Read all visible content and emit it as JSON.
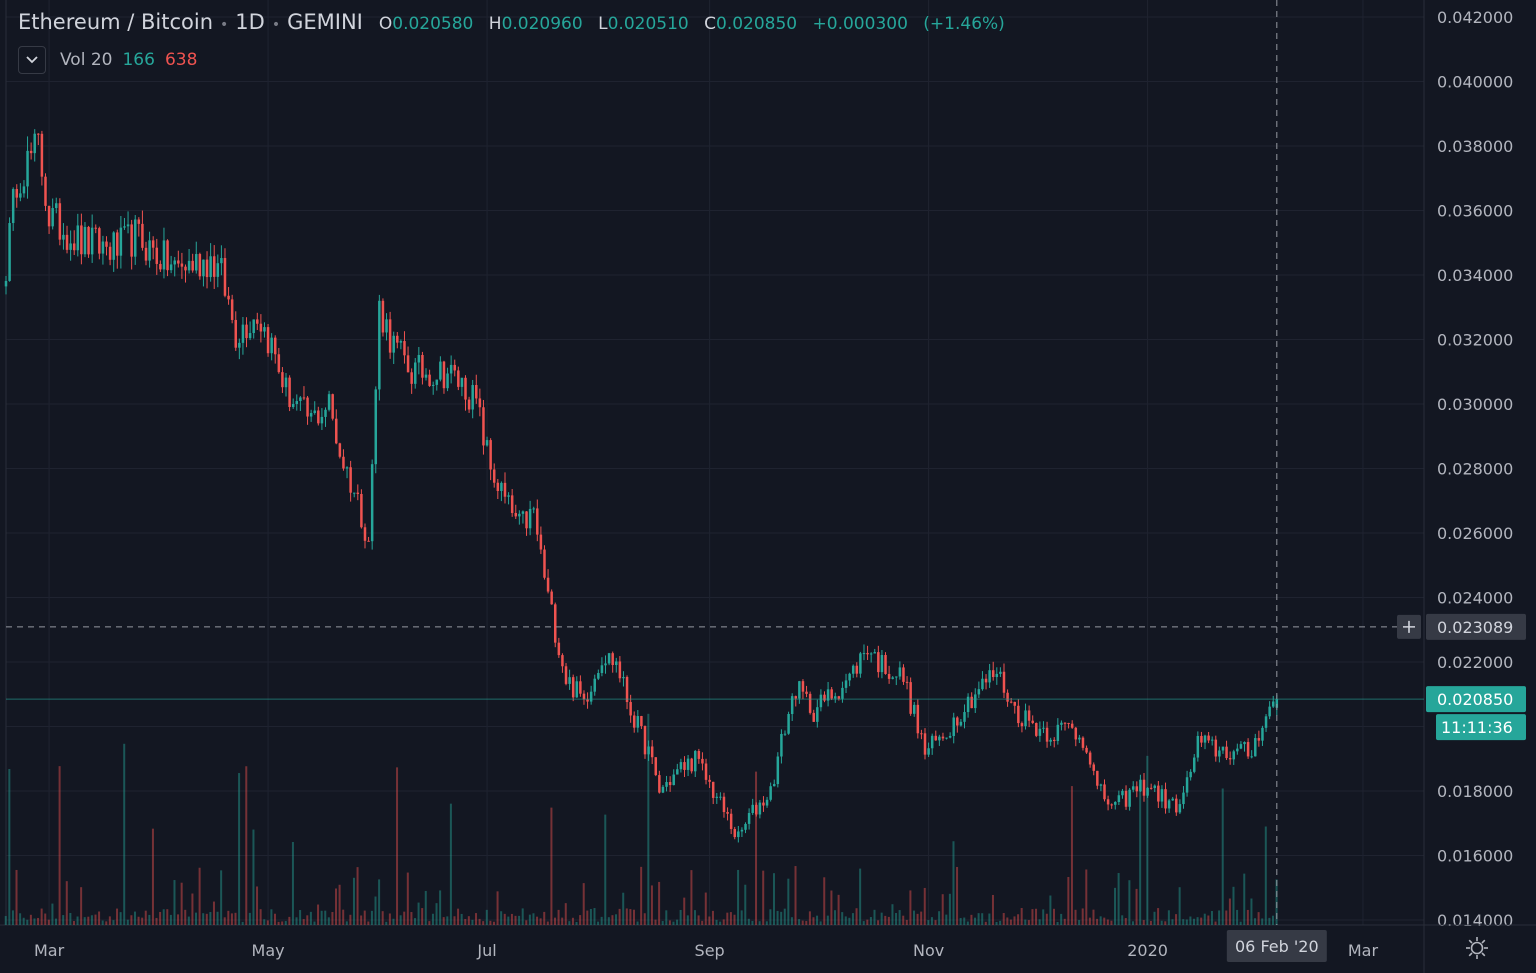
{
  "legend": {
    "symbol": "Ethereum / Bitcoin",
    "interval": "1D",
    "exchange": "GEMINI",
    "open": "0.020580",
    "high": "0.020960",
    "low": "0.020510",
    "close": "0.020850",
    "change": "+0.000300",
    "change_pct": "(+1.46%)"
  },
  "volume_indicator": {
    "name": "Vol",
    "length": "20",
    "up_value": "166",
    "down_value": "638"
  },
  "icons": {
    "collapse": "chevron-down-icon",
    "settings": "gear-icon",
    "crosshair_add": "plus-icon"
  },
  "colors": {
    "background": "#131722",
    "up": "#26a69a",
    "down": "#ef5350",
    "grid": "#1f2330",
    "text": "#b2b5be"
  },
  "chart_data": {
    "type": "candlestick",
    "title": "",
    "y_axis": {
      "min": 0.014,
      "max": 0.042,
      "ticks": [
        "0.042000",
        "0.040000",
        "0.038000",
        "0.036000",
        "0.034000",
        "0.032000",
        "0.030000",
        "0.028000",
        "0.026000",
        "0.024000",
        "0.022000",
        "0.020000",
        "0.018000",
        "0.016000",
        "0.014000"
      ]
    },
    "x_axis": {
      "start": "2019-02-17",
      "end": "2020-03-18",
      "ticks": [
        {
          "label": "Mar",
          "date": "2019-03-01"
        },
        {
          "label": "May",
          "date": "2019-05-01"
        },
        {
          "label": "Jul",
          "date": "2019-07-01"
        },
        {
          "label": "Sep",
          "date": "2019-09-01"
        },
        {
          "label": "Nov",
          "date": "2019-11-01"
        },
        {
          "label": "2020",
          "date": "2020-01-01"
        },
        {
          "label": "Mar",
          "date": "2020-03-01"
        }
      ]
    },
    "last_price": {
      "value": 0.02085,
      "label": "0.020850",
      "countdown": "11:11:36"
    },
    "crosshair": {
      "price": 0.023089,
      "price_label": "0.023089",
      "date": "2020-02-06",
      "date_label": "06 Feb '20"
    },
    "price_path": [
      [
        "2019-02-17",
        0.0343
      ],
      [
        "2019-02-20",
        0.037
      ],
      [
        "2019-02-26",
        0.038
      ],
      [
        "2019-03-01",
        0.0358
      ],
      [
        "2019-03-10",
        0.035
      ],
      [
        "2019-03-20",
        0.0348
      ],
      [
        "2019-03-25",
        0.0352
      ],
      [
        "2019-04-05",
        0.0342
      ],
      [
        "2019-04-15",
        0.0345
      ],
      [
        "2019-04-18",
        0.034
      ],
      [
        "2019-04-22",
        0.0322
      ],
      [
        "2019-04-28",
        0.0328
      ],
      [
        "2019-05-02",
        0.0318
      ],
      [
        "2019-05-06",
        0.0304
      ],
      [
        "2019-05-10",
        0.0298
      ],
      [
        "2019-05-13",
        0.0295
      ],
      [
        "2019-05-18",
        0.03
      ],
      [
        "2019-05-21",
        0.0285
      ],
      [
        "2019-05-26",
        0.027
      ],
      [
        "2019-05-29",
        0.0258
      ],
      [
        "2019-05-30",
        0.028
      ],
      [
        "2019-06-01",
        0.033
      ],
      [
        "2019-06-05",
        0.0318
      ],
      [
        "2019-06-10",
        0.031
      ],
      [
        "2019-06-20",
        0.031
      ],
      [
        "2019-06-25",
        0.0305
      ],
      [
        "2019-06-28",
        0.03
      ],
      [
        "2019-07-02",
        0.028
      ],
      [
        "2019-07-06",
        0.027
      ],
      [
        "2019-07-10",
        0.0262
      ],
      [
        "2019-07-14",
        0.0266
      ],
      [
        "2019-07-18",
        0.024
      ],
      [
        "2019-07-23",
        0.0215
      ],
      [
        "2019-07-28",
        0.0208
      ],
      [
        "2019-08-02",
        0.0222
      ],
      [
        "2019-08-06",
        0.022
      ],
      [
        "2019-08-10",
        0.0205
      ],
      [
        "2019-08-15",
        0.0192
      ],
      [
        "2019-08-18",
        0.018
      ],
      [
        "2019-08-24",
        0.0187
      ],
      [
        "2019-08-28",
        0.019
      ],
      [
        "2019-09-03",
        0.0178
      ],
      [
        "2019-09-09",
        0.0165
      ],
      [
        "2019-09-12",
        0.0172
      ],
      [
        "2019-09-18",
        0.018
      ],
      [
        "2019-09-22",
        0.02
      ],
      [
        "2019-09-25",
        0.0212
      ],
      [
        "2019-09-30",
        0.0205
      ],
      [
        "2019-10-05",
        0.021
      ],
      [
        "2019-10-10",
        0.0215
      ],
      [
        "2019-10-15",
        0.0225
      ],
      [
        "2019-10-18",
        0.022
      ],
      [
        "2019-10-25",
        0.0215
      ],
      [
        "2019-10-31",
        0.0192
      ],
      [
        "2019-11-05",
        0.0197
      ],
      [
        "2019-11-10",
        0.0205
      ],
      [
        "2019-11-15",
        0.0212
      ],
      [
        "2019-11-20",
        0.0217
      ],
      [
        "2019-11-25",
        0.0205
      ],
      [
        "2019-12-01",
        0.02
      ],
      [
        "2019-12-05",
        0.0198
      ],
      [
        "2019-12-10",
        0.02
      ],
      [
        "2019-12-15",
        0.0195
      ],
      [
        "2019-12-18",
        0.018
      ],
      [
        "2019-12-23",
        0.0175
      ],
      [
        "2019-12-28",
        0.018
      ],
      [
        "2020-01-01",
        0.0182
      ],
      [
        "2020-01-05",
        0.0178
      ],
      [
        "2020-01-08",
        0.0175
      ],
      [
        "2020-01-11",
        0.0178
      ],
      [
        "2020-01-15",
        0.0195
      ],
      [
        "2020-01-20",
        0.0193
      ],
      [
        "2020-01-25",
        0.0192
      ],
      [
        "2020-01-30",
        0.0192
      ],
      [
        "2020-02-02",
        0.0202
      ],
      [
        "2020-02-06",
        0.02085
      ]
    ]
  }
}
